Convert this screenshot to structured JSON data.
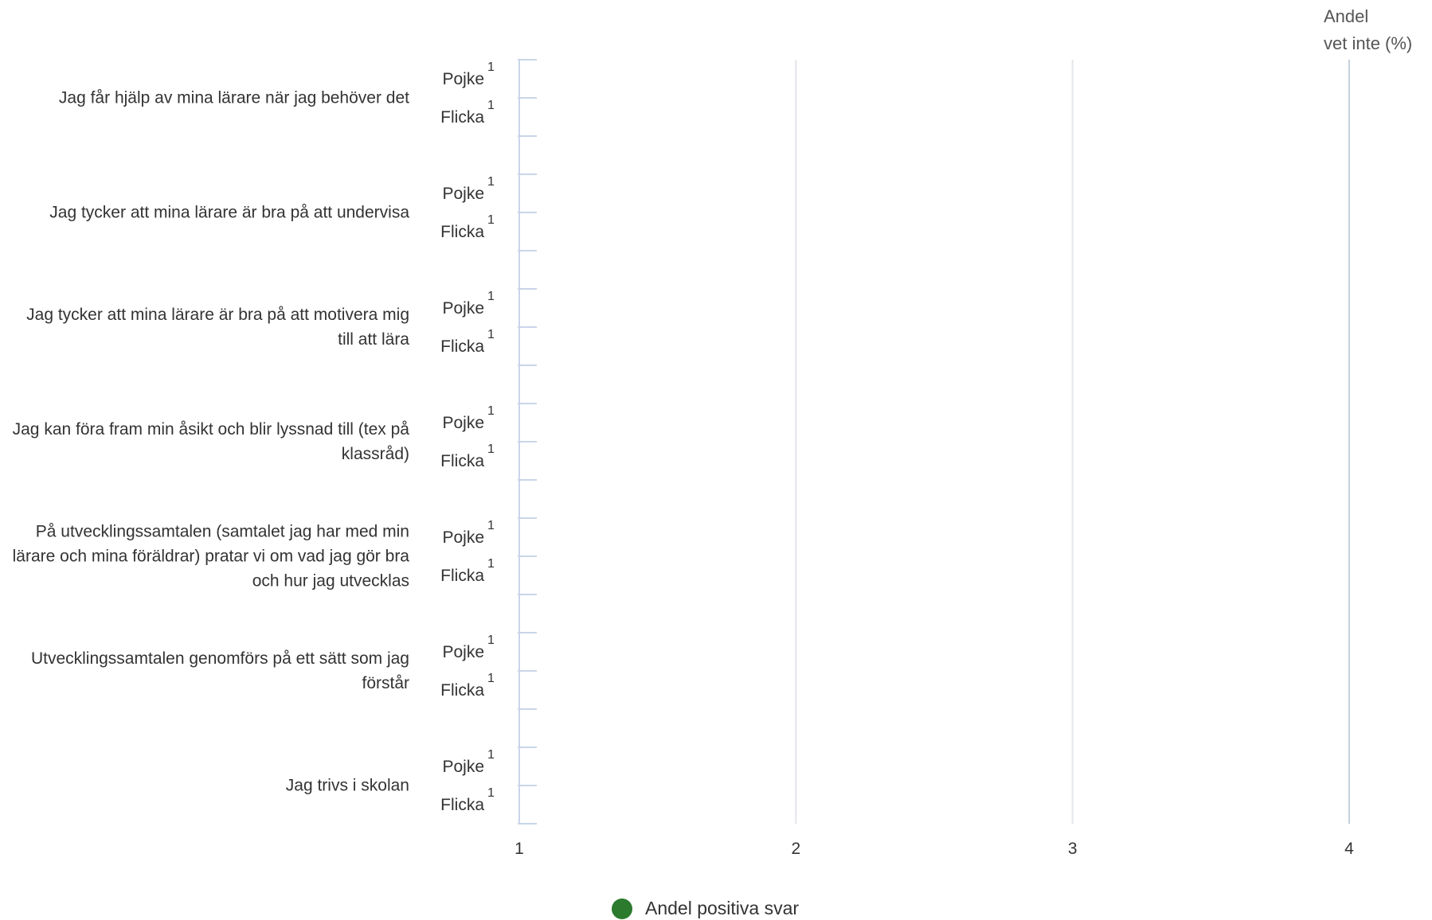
{
  "chart_data": {
    "type": "dot",
    "categories": [
      "Jag får hjälp av mina lärare när jag behöver det",
      "Jag tycker att mina lärare är bra på att undervisa",
      "Jag tycker att mina lärare är bra på att motivera mig till att lära",
      "Jag kan föra fram min åsikt och blir lyssnad till (tex på klassråd)",
      "På utvecklingssamtalen (samtalet jag har med min lärare och mina föräldrar) pratar vi om vad jag gör bra och hur jag utvecklas",
      "Utvecklingssamtalen genomförs på ett sätt som jag förstår",
      "Jag trivs i skolan"
    ],
    "groups": [
      "Pojke",
      "Flicka"
    ],
    "n": [
      [
        1,
        1
      ],
      [
        1,
        1
      ],
      [
        1,
        1
      ],
      [
        1,
        1
      ],
      [
        1,
        1
      ],
      [
        1,
        1
      ],
      [
        1,
        1
      ]
    ],
    "series": [
      {
        "name": "Andel positiva svar",
        "color": "#2b7a2e",
        "values": [
          [
            null,
            null
          ],
          [
            null,
            null
          ],
          [
            null,
            null
          ],
          [
            null,
            null
          ],
          [
            null,
            null
          ],
          [
            null,
            null
          ],
          [
            null,
            null
          ]
        ]
      }
    ],
    "xlim": [
      1,
      4
    ],
    "xticks": [
      1,
      2,
      3,
      4
    ],
    "right_header": [
      "Andel",
      "vet inte (%)"
    ],
    "grid": true
  }
}
